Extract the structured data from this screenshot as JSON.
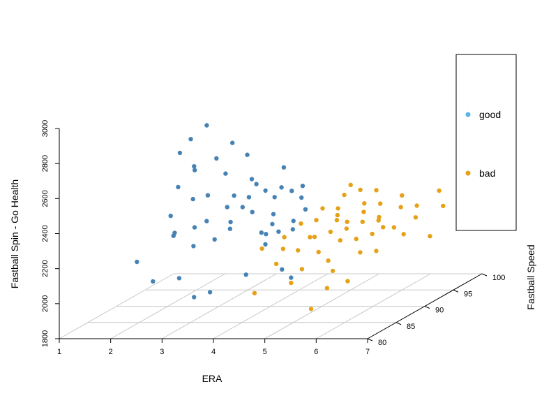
{
  "chart_data": {
    "type": "scatter",
    "projection": "3d",
    "title": "",
    "xlabel": "ERA",
    "ylabel": "Fastball Speed",
    "zlabel": "Fastball Spin - Go Health",
    "x_ticks": [
      "1",
      "2",
      "3",
      "4",
      "5",
      "6",
      "7"
    ],
    "y_ticks": [
      "80",
      "85",
      "90",
      "95",
      "100"
    ],
    "z_ticks": [
      "1800",
      "2000",
      "2200",
      "2400",
      "2600",
      "2800",
      "3000"
    ],
    "xlim": [
      1,
      7
    ],
    "ylim": [
      80,
      100
    ],
    "zlim": [
      1800,
      3000
    ],
    "grid": "floor",
    "legend_position": "right",
    "series": [
      {
        "name": "good",
        "legend_color": "#5ab4e5",
        "color": "#4682b4",
        "points": [
          [
            2.0,
            94,
            2680
          ],
          [
            2.2,
            95,
            2740
          ],
          [
            1.9,
            93,
            2620
          ],
          [
            2.5,
            94,
            2570
          ],
          [
            2.4,
            91,
            2580
          ],
          [
            2.7,
            95,
            2640
          ],
          [
            2.3,
            92,
            2540
          ],
          [
            3.1,
            94,
            2590
          ],
          [
            2.9,
            92,
            2520
          ],
          [
            2.2,
            90,
            2480
          ],
          [
            3.3,
            93,
            2470
          ],
          [
            3.0,
            88,
            2470
          ],
          [
            2.6,
            89,
            2430
          ],
          [
            3.5,
            92,
            2460
          ],
          [
            3.7,
            95,
            2500
          ],
          [
            3.4,
            89,
            2450
          ],
          [
            2.5,
            86,
            2390
          ],
          [
            3.2,
            86,
            2360
          ],
          [
            2.8,
            84,
            2330
          ],
          [
            3.9,
            90,
            2460
          ],
          [
            3.8,
            88,
            2460
          ],
          [
            3.6,
            86,
            2440
          ],
          [
            4.1,
            91,
            2460
          ],
          [
            3.9,
            86,
            2440
          ],
          [
            4.3,
            88,
            2460
          ],
          [
            4.4,
            92,
            2450
          ],
          [
            4.2,
            85,
            2430
          ],
          [
            4.6,
            90,
            2420
          ],
          [
            4.0,
            83,
            2410
          ],
          [
            4.5,
            86,
            2400
          ],
          [
            3.3,
            83,
            2380
          ],
          [
            3.0,
            82,
            2350
          ],
          [
            3.8,
            82,
            2330
          ],
          [
            3.5,
            81,
            2310
          ],
          [
            4.1,
            82,
            2390
          ],
          [
            4.6,
            83,
            2350
          ],
          [
            4.9,
            88,
            2390
          ],
          [
            4.7,
            84,
            2380
          ],
          [
            4.8,
            82,
            2360
          ],
          [
            5.0,
            85,
            2380
          ],
          [
            5.1,
            84,
            2350
          ],
          [
            4.9,
            81,
            2320
          ],
          [
            2.4,
            81,
            2220
          ],
          [
            2.6,
            82,
            2090
          ],
          [
            3.0,
            83,
            2090
          ],
          [
            3.4,
            82,
            2000
          ],
          [
            3.6,
            83,
            2010
          ],
          [
            4.3,
            83,
            2110
          ],
          [
            5.0,
            83,
            2140
          ],
          [
            5.4,
            81,
            2130
          ],
          [
            4.6,
            86,
            2300
          ],
          [
            4.3,
            91,
            2440
          ]
        ]
      },
      {
        "name": "bad",
        "legend_color": "#e6a117",
        "color": "#e6a117",
        "points": [
          [
            5.0,
            95,
            2400
          ],
          [
            5.1,
            93,
            2380
          ],
          [
            5.3,
            94,
            2390
          ],
          [
            5.2,
            91,
            2340
          ],
          [
            5.5,
            95,
            2370
          ],
          [
            5.6,
            92,
            2350
          ],
          [
            5.4,
            89,
            2310
          ],
          [
            5.8,
            93,
            2330
          ],
          [
            5.7,
            91,
            2320
          ],
          [
            6.0,
            95,
            2340
          ],
          [
            5.9,
            89,
            2300
          ],
          [
            6.2,
            93,
            2310
          ],
          [
            6.1,
            90,
            2290
          ],
          [
            6.4,
            94,
            2300
          ],
          [
            6.5,
            97,
            2330
          ],
          [
            6.3,
            89,
            2270
          ],
          [
            6.6,
            92,
            2270
          ],
          [
            6.8,
            95,
            2280
          ],
          [
            6.9,
            99,
            2330
          ],
          [
            7.0,
            96,
            2270
          ],
          [
            5.5,
            87,
            2280
          ],
          [
            5.3,
            86,
            2270
          ],
          [
            5.8,
            86,
            2250
          ],
          [
            6.0,
            87,
            2240
          ],
          [
            5.6,
            84,
            2220
          ],
          [
            5.2,
            84,
            2230
          ],
          [
            5.9,
            83,
            2190
          ],
          [
            6.3,
            85,
            2200
          ],
          [
            6.5,
            86,
            2190
          ],
          [
            5.0,
            82,
            2190
          ],
          [
            5.5,
            82,
            2160
          ],
          [
            6.1,
            82,
            2150
          ],
          [
            6.5,
            81,
            2110
          ],
          [
            5.4,
            81,
            2100
          ],
          [
            6.1,
            81,
            2070
          ],
          [
            4.8,
            80,
            2060
          ],
          [
            5.9,
            80,
            1970
          ],
          [
            4.6,
            87,
            2250
          ],
          [
            4.8,
            85,
            2220
          ],
          [
            4.5,
            84,
            2240
          ],
          [
            5.0,
            89,
            2310
          ],
          [
            5.3,
            90,
            2320
          ],
          [
            5.6,
            89,
            2300
          ],
          [
            6.0,
            91,
            2290
          ],
          [
            4.9,
            91,
            2340
          ],
          [
            6.2,
            88,
            2250
          ],
          [
            5.7,
            88,
            2280
          ],
          [
            6.4,
            90,
            2250
          ],
          [
            6.7,
            89,
            2230
          ],
          [
            7.1,
            90,
            2200
          ],
          [
            4.7,
            89,
            2290
          ],
          [
            5.1,
            87,
            2250
          ]
        ]
      }
    ]
  }
}
